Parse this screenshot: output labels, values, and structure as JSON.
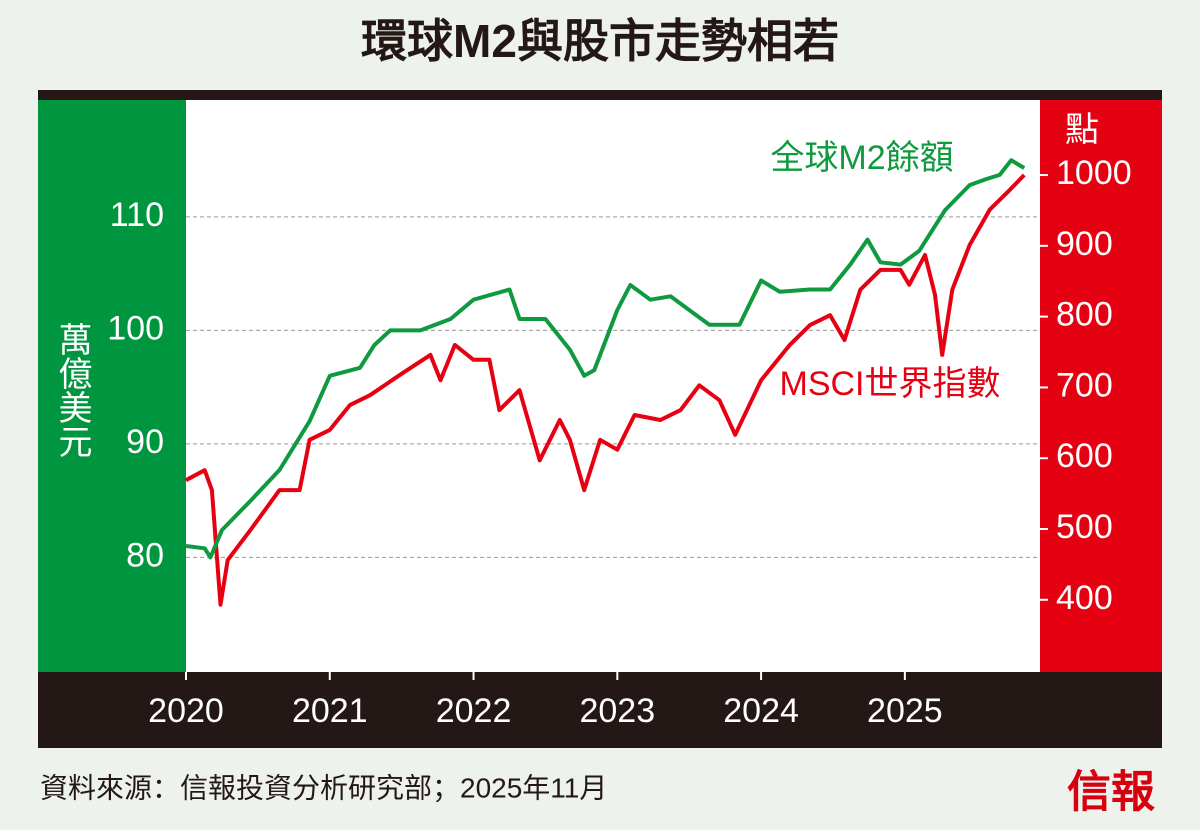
{
  "chart_data": {
    "type": "line",
    "title": "環球M2與股市走勢相若",
    "ylabel": "萬億美元",
    "y2label": "點",
    "xlim": [
      2020,
      2025.94
    ],
    "xticks": [
      2020,
      2021,
      2022,
      2023,
      2024,
      2025
    ],
    "ylim": [
      69.9,
      120.3
    ],
    "yticks": [
      80,
      90,
      100,
      110
    ],
    "y2lim": [
      298,
      1106
    ],
    "y2ticks": [
      400,
      500,
      600,
      700,
      800,
      900,
      1000
    ],
    "grid": true,
    "series": [
      {
        "name": "全球M2餘額",
        "color": "#0f9a3f",
        "x": [
          2020.0,
          2020.13,
          2020.17,
          2020.25,
          2020.45,
          2020.65,
          2020.86,
          2021.0,
          2021.21,
          2021.31,
          2021.42,
          2021.63,
          2021.84,
          2022.0,
          2022.25,
          2022.32,
          2022.5,
          2022.67,
          2022.77,
          2022.84,
          2023.0,
          2023.09,
          2023.23,
          2023.37,
          2023.5,
          2023.64,
          2023.85,
          2024.0,
          2024.13,
          2024.34,
          2024.48,
          2024.62,
          2024.74,
          2024.83,
          2024.97,
          2025.1,
          2025.28,
          2025.45,
          2025.56,
          2025.66,
          2025.74,
          2025.83
        ],
        "values": [
          81.0,
          80.8,
          80.0,
          82.4,
          85.0,
          87.7,
          92.0,
          96.0,
          96.7,
          98.7,
          100.0,
          100.0,
          101.0,
          102.7,
          103.6,
          101.0,
          101.0,
          98.3,
          96.0,
          96.5,
          101.8,
          104.0,
          102.7,
          103.0,
          101.8,
          100.5,
          100.5,
          104.4,
          103.4,
          103.6,
          103.6,
          105.8,
          108.0,
          106.0,
          105.8,
          107.0,
          110.6,
          112.8,
          113.3,
          113.7,
          115.0,
          114.3
        ]
      },
      {
        "name": "MSCI世界指數",
        "color": "#e60012",
        "axis": "y2",
        "x": [
          2020.0,
          2020.13,
          2020.18,
          2020.24,
          2020.29,
          2020.45,
          2020.65,
          2020.79,
          2020.86,
          2021.0,
          2021.14,
          2021.28,
          2021.49,
          2021.7,
          2021.77,
          2021.87,
          2022.0,
          2022.11,
          2022.18,
          2022.32,
          2022.46,
          2022.6,
          2022.67,
          2022.77,
          2022.88,
          2023.0,
          2023.12,
          2023.3,
          2023.44,
          2023.57,
          2023.71,
          2023.82,
          2024.0,
          2024.2,
          2024.34,
          2024.48,
          2024.58,
          2024.69,
          2024.83,
          2024.97,
          2025.03,
          2025.14,
          2025.21,
          2025.26,
          2025.33,
          2025.45,
          2025.59,
          2025.73,
          2025.83
        ],
        "values": [
          569,
          583,
          555,
          393,
          456,
          499,
          555,
          555,
          626,
          640,
          675,
          689,
          718,
          746,
          710,
          760,
          739,
          739,
          668,
          696,
          597,
          654,
          626,
          555,
          626,
          612,
          661,
          654,
          668,
          703,
          682,
          633,
          710,
          760,
          788,
          802,
          767,
          838,
          866,
          866,
          845,
          887,
          831,
          746,
          838,
          901,
          951,
          979,
          1000
        ]
      }
    ],
    "source": "資料來源：信報投資分析研究部；2025年11月",
    "logo": "信報"
  }
}
